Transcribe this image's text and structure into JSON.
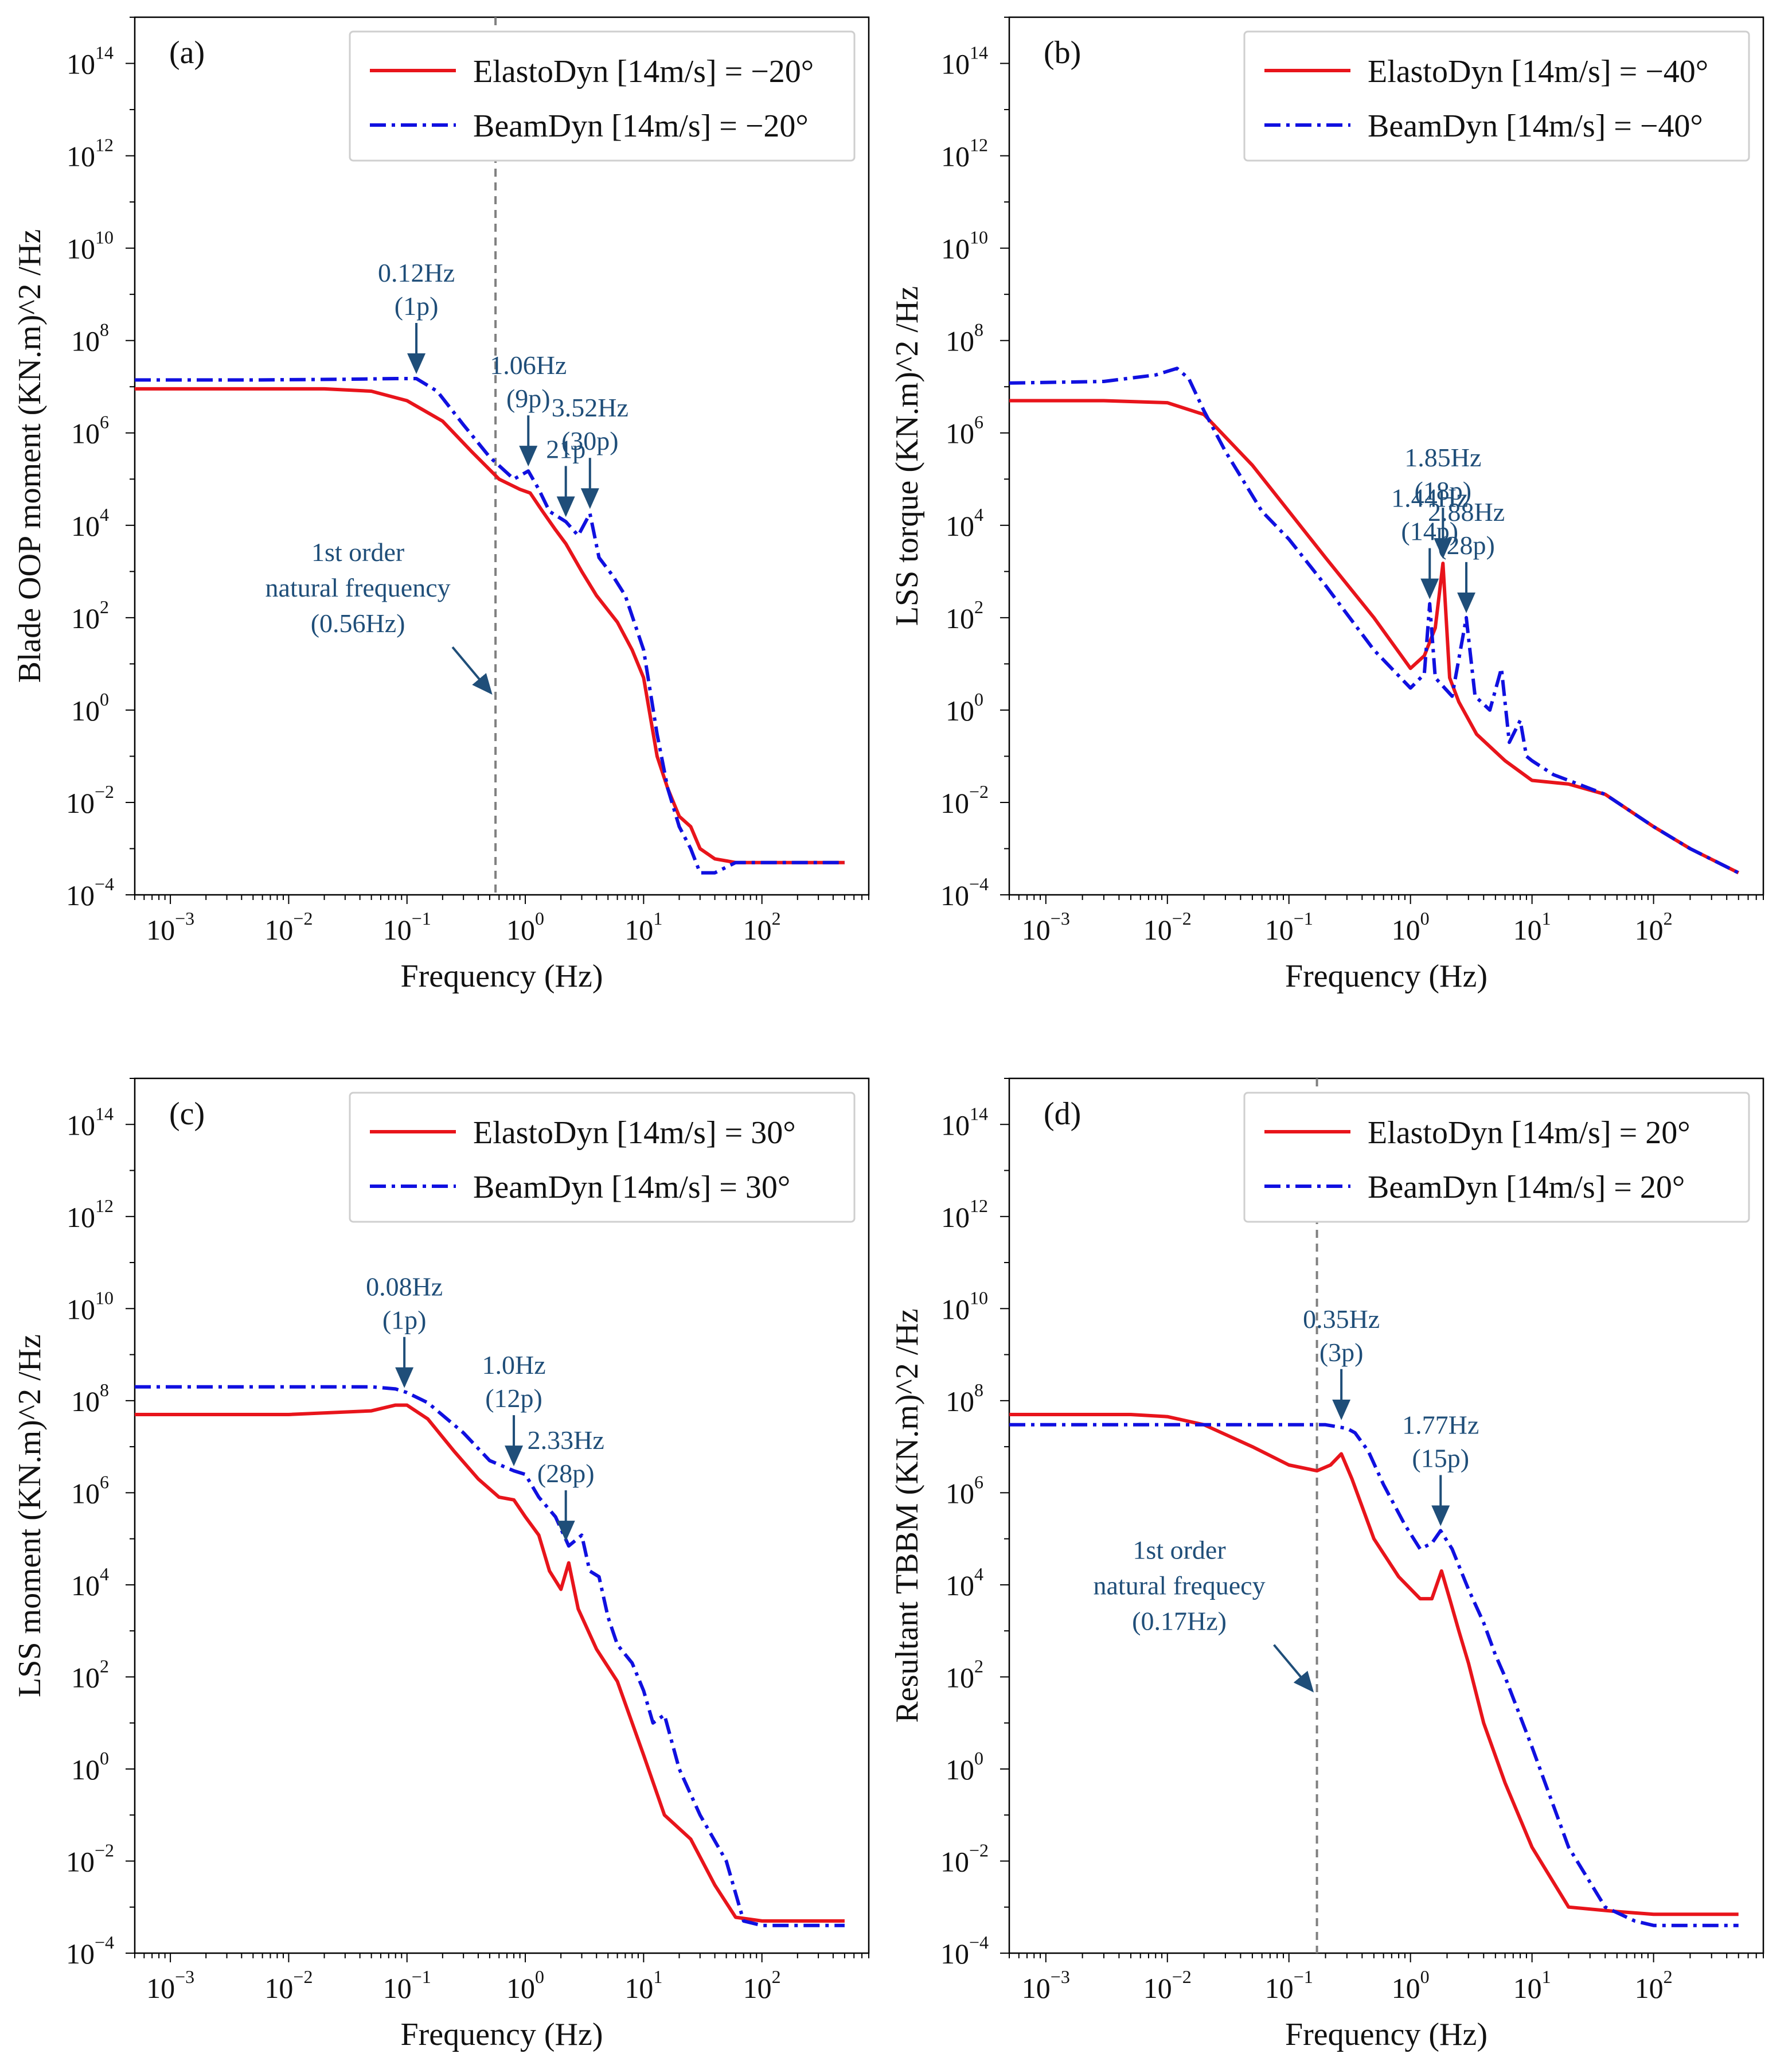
{
  "colors": {
    "elastodyn": "#e8141b",
    "beamdyn": "#1010e0",
    "annotation": "#1f4e79",
    "vline": "#808080"
  },
  "chart_data": [
    {
      "type": "line",
      "panel": "(a)",
      "xlabel": "Frequency (Hz)",
      "ylabel": "Blade OOP moment (KN.m)^2 /Hz",
      "xscale": "log",
      "yscale": "log",
      "xlim": [
        0.0005,
        800
      ],
      "ylim": [
        0.0001,
        1000000000000000.0
      ],
      "legend_position": "top-right",
      "series": [
        {
          "name": "ElastoDyn [14m/s] = −20°",
          "style": "solid",
          "x": [
            0.0005,
            0.005,
            0.02,
            0.05,
            0.1,
            0.2,
            0.35,
            0.6,
            0.9,
            1.1,
            1.4,
            1.8,
            2.2,
            3,
            4,
            6,
            8,
            10,
            13,
            16,
            20,
            25,
            30,
            40,
            60,
            100,
            200,
            500
          ],
          "y": [
            9000000.0,
            9000000.0,
            9000000.0,
            8000000.0,
            5000000.0,
            1800000.0,
            400000.0,
            100000.0,
            60000.0,
            50000.0,
            20000.0,
            8000.0,
            4000.0,
            1000.0,
            300.0,
            80.0,
            20.0,
            5,
            0.1,
            0.02,
            0.005,
            0.003,
            0.001,
            0.0006,
            0.0005,
            0.0005,
            0.0005,
            0.0005
          ]
        },
        {
          "name": "BeamDyn [14m/s] = −20°",
          "style": "dashdot",
          "x": [
            0.0005,
            0.005,
            0.03,
            0.08,
            0.12,
            0.18,
            0.3,
            0.5,
            0.8,
            1.06,
            1.3,
            1.6,
            2.2,
            2.8,
            3.52,
            4.2,
            5.5,
            7,
            10,
            13,
            16,
            20,
            25,
            30,
            40,
            60,
            100,
            200,
            500
          ],
          "y": [
            14000000.0,
            14000000.0,
            14500000.0,
            15000000.0,
            15000000.0,
            8000000.0,
            1500000.0,
            300000.0,
            100000.0,
            150000.0,
            60000.0,
            20000.0,
            12000.0,
            6000.0,
            18000.0,
            2000.0,
            800.0,
            300.0,
            20.0,
            0.3,
            0.02,
            0.003,
            0.001,
            0.0003,
            0.0003,
            0.0005,
            0.0005,
            0.0005,
            0.0005
          ]
        }
      ],
      "vline": 0.56,
      "annotations": [
        {
          "lines": [
            "0.12Hz",
            "(1p)"
          ],
          "arrow_x": 0.12,
          "arrow_y": 15000000.0
        },
        {
          "lines": [
            "1.06Hz",
            "(9p)"
          ],
          "arrow_x": 1.06,
          "arrow_y": 150000.0
        },
        {
          "lines": [
            "21p"
          ],
          "arrow_x": 2.2,
          "arrow_y": 12000.0
        },
        {
          "lines": [
            "3.52Hz",
            "(30p)"
          ],
          "arrow_x": 3.52,
          "arrow_y": 18000.0
        }
      ],
      "note": {
        "lines": [
          "1st order",
          "natural frequency",
          "(0.56Hz)"
        ]
      }
    },
    {
      "type": "line",
      "panel": "(b)",
      "xlabel": "Frequency (Hz)",
      "ylabel": "LSS torque (KN.m)^2 /Hz",
      "xscale": "log",
      "yscale": "log",
      "xlim": [
        0.0005,
        800
      ],
      "ylim": [
        0.0001,
        1000000000000000.0
      ],
      "legend_position": "top-right",
      "series": [
        {
          "name": "ElastoDyn [14m/s] = −40°",
          "style": "solid",
          "x": [
            0.0005,
            0.003,
            0.01,
            0.02,
            0.05,
            0.1,
            0.2,
            0.5,
            1.0,
            1.3,
            1.6,
            1.85,
            2.1,
            2.5,
            3.5,
            6,
            10,
            20,
            40,
            100,
            200,
            500
          ],
          "y": [
            5000000.0,
            5000000.0,
            4500000.0,
            2500000.0,
            200000.0,
            20000.0,
            2000.0,
            100.0,
            8,
            15.0,
            60.0,
            1500.0,
            5,
            1.5,
            0.3,
            0.08,
            0.03,
            0.025,
            0.015,
            0.003,
            0.001,
            0.0003
          ]
        },
        {
          "name": "BeamDyn [14m/s] = −40°",
          "style": "dashdot",
          "x": [
            0.0005,
            0.003,
            0.008,
            0.012,
            0.015,
            0.02,
            0.03,
            0.06,
            0.1,
            0.2,
            0.5,
            1.0,
            1.3,
            1.44,
            1.6,
            2.2,
            2.88,
            3.4,
            4.5,
            5.6,
            6.5,
            8,
            9,
            10,
            15,
            20,
            40,
            100,
            200,
            500
          ],
          "y": [
            12000000.0,
            13000000.0,
            18000000.0,
            25000000.0,
            15000000.0,
            3000000.0,
            400000.0,
            20000.0,
            5000.0,
            500.0,
            20.0,
            3,
            6,
            200.0,
            5,
            2,
            100.0,
            2,
            1,
            8,
            0.2,
            0.6,
            0.1,
            0.08,
            0.04,
            0.03,
            0.015,
            0.003,
            0.001,
            0.0003
          ]
        }
      ],
      "annotations": [
        {
          "lines": [
            "1.44Hz",
            "(14p)"
          ],
          "arrow_x": 1.44,
          "arrow_y": 200.0
        },
        {
          "lines": [
            "1.85Hz",
            "(18p)"
          ],
          "arrow_x": 1.85,
          "arrow_y": 1500.0
        },
        {
          "lines": [
            "2.88Hz",
            "(28p)"
          ],
          "arrow_x": 2.88,
          "arrow_y": 100.0
        }
      ]
    },
    {
      "type": "line",
      "panel": "(c)",
      "xlabel": "Frequency (Hz)",
      "ylabel": "LSS moment (KN.m)^2 /Hz",
      "xscale": "log",
      "yscale": "log",
      "xlim": [
        0.0005,
        800
      ],
      "ylim": [
        0.0001,
        1000000000000000.0
      ],
      "legend_position": "top-right",
      "series": [
        {
          "name": "ElastoDyn [14m/s] = 30°",
          "style": "solid",
          "x": [
            0.0005,
            0.01,
            0.05,
            0.08,
            0.1,
            0.15,
            0.25,
            0.4,
            0.6,
            0.8,
            1.0,
            1.3,
            1.6,
            2.0,
            2.33,
            2.8,
            4,
            6,
            10,
            15,
            25,
            40,
            60,
            100,
            200,
            500
          ],
          "y": [
            50000000.0,
            50000000.0,
            60000000.0,
            80000000.0,
            80000000.0,
            40000000.0,
            8000000.0,
            2000000.0,
            800000.0,
            700000.0,
            300000.0,
            120000.0,
            20000.0,
            8000.0,
            30000.0,
            3000.0,
            400.0,
            80.0,
            2,
            0.1,
            0.03,
            0.003,
            0.0006,
            0.0005,
            0.0005,
            0.0005
          ]
        },
        {
          "name": "BeamDyn [14m/s] = 30°",
          "style": "dashdot",
          "x": [
            0.0005,
            0.01,
            0.05,
            0.08,
            0.1,
            0.15,
            0.3,
            0.5,
            0.8,
            1.0,
            1.3,
            1.8,
            2.33,
            3.0,
            3.5,
            4.2,
            5,
            6,
            8,
            10,
            12,
            15,
            20,
            30,
            50,
            70,
            100,
            200,
            500
          ],
          "y": [
            200000000.0,
            200000000.0,
            200000000.0,
            180000000.0,
            150000000.0,
            90000000.0,
            20000000.0,
            5000000.0,
            3000000.0,
            2500000.0,
            800000.0,
            300000.0,
            70000.0,
            120000.0,
            20000.0,
            15000.0,
            2000.0,
            500.0,
            200.0,
            50.0,
            10.0,
            15.0,
            1,
            0.1,
            0.01,
            0.0005,
            0.0004,
            0.0004,
            0.0004
          ]
        }
      ],
      "annotations": [
        {
          "lines": [
            "0.08Hz",
            "(1p)"
          ],
          "arrow_x": 0.095,
          "arrow_y": 150000000.0
        },
        {
          "lines": [
            "1.0Hz",
            "(12p)"
          ],
          "arrow_x": 0.8,
          "arrow_y": 3000000.0
        },
        {
          "lines": [
            "2.33Hz",
            "(28p)"
          ],
          "arrow_x": 2.2,
          "arrow_y": 70000.0
        }
      ]
    },
    {
      "type": "line",
      "panel": "(d)",
      "xlabel": "Frequency (Hz)",
      "ylabel": "Resultant TBBM (KN.m)^2 /Hz",
      "xscale": "log",
      "yscale": "log",
      "xlim": [
        0.0005,
        800
      ],
      "ylim": [
        0.0001,
        1000000000000000.0
      ],
      "legend_position": "top-right",
      "series": [
        {
          "name": "ElastoDyn [14m/s] = 20°",
          "style": "solid",
          "x": [
            0.0005,
            0.005,
            0.01,
            0.02,
            0.05,
            0.1,
            0.17,
            0.22,
            0.27,
            0.33,
            0.5,
            0.8,
            1.2,
            1.5,
            1.8,
            2.1,
            2.5,
            3,
            4,
            6,
            10,
            20,
            50,
            100,
            200,
            500
          ],
          "y": [
            50000000.0,
            50000000.0,
            45000000.0,
            30000000.0,
            10000000.0,
            4000000.0,
            3000000.0,
            4000000.0,
            7000000.0,
            2000000.0,
            100000.0,
            15000.0,
            5000.0,
            5000.0,
            20000.0,
            5000.0,
            1000.0,
            200.0,
            10.0,
            0.5,
            0.02,
            0.001,
            0.0008,
            0.0007,
            0.0007,
            0.0007
          ]
        },
        {
          "name": "BeamDyn [14m/s] = 20°",
          "style": "dashdot",
          "x": [
            0.0005,
            0.01,
            0.05,
            0.1,
            0.2,
            0.3,
            0.35,
            0.45,
            0.6,
            0.9,
            1.2,
            1.5,
            1.77,
            2.2,
            3,
            4,
            5,
            6,
            10,
            20,
            40,
            70,
            100,
            200,
            500
          ],
          "y": [
            30000000.0,
            30000000.0,
            30000000.0,
            30000000.0,
            30000000.0,
            25000000.0,
            20000000.0,
            8000000.0,
            1500000.0,
            200000.0,
            60000.0,
            80000.0,
            150000.0,
            60000.0,
            8000.0,
            1500.0,
            300.0,
            100.0,
            3,
            0.02,
            0.001,
            0.0005,
            0.0004,
            0.0004,
            0.0004
          ]
        }
      ],
      "vline": 0.17,
      "annotations": [
        {
          "lines": [
            "0.35Hz",
            "(3p)"
          ],
          "arrow_x": 0.27,
          "arrow_y": 30000000.0
        },
        {
          "lines": [
            "1.77Hz",
            "(15p)"
          ],
          "arrow_x": 1.77,
          "arrow_y": 150000.0
        }
      ],
      "note": {
        "lines": [
          "1st order",
          "natural frequecy",
          "(0.17Hz)"
        ],
        "superscript": "st"
      }
    }
  ]
}
